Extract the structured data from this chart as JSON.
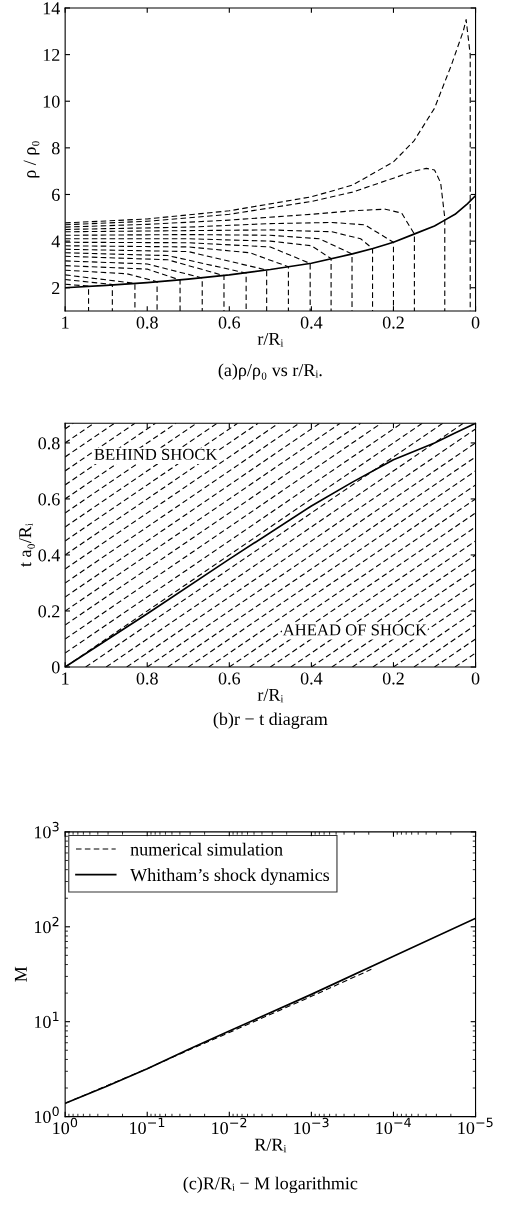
{
  "chart_data": [
    {
      "type": "line",
      "title": "(a)ρ/ρ₀ vs r/Rᵢ.",
      "xlabel": "r/Rᵢ",
      "ylabel": "ρ / ρ₀",
      "xlim": [
        1,
        0
      ],
      "ylim": [
        1,
        14
      ],
      "xticks": [
        1,
        0.8,
        0.6,
        0.4,
        0.2,
        0
      ],
      "yticks": [
        2,
        4,
        6,
        8,
        10,
        12,
        14
      ],
      "grid": false,
      "series": [
        {
          "color": "#000000",
          "line_style": "solid",
          "x": [
            1,
            0.9,
            0.8,
            0.7,
            0.6,
            0.5,
            0.4,
            0.3,
            0.25,
            0.2,
            0.15,
            0.1,
            0.075,
            0.05,
            0.02,
            0
          ],
          "values": [
            2.0,
            2.1,
            2.22,
            2.37,
            2.55,
            2.78,
            3.05,
            3.45,
            3.68,
            3.95,
            4.3,
            4.65,
            4.9,
            5.15,
            5.6,
            5.95
          ]
        },
        {
          "color": "#000000",
          "line_style": "dashed",
          "x": [
            1,
            0.943,
            0.943
          ],
          "values": [
            2.15,
            2.07,
            1
          ]
        },
        {
          "color": "#000000",
          "line_style": "dashed",
          "x": [
            1,
            0.885,
            0.885
          ],
          "values": [
            2.35,
            2.14,
            1
          ]
        },
        {
          "color": "#000000",
          "line_style": "dashed",
          "x": [
            1,
            0.83,
            0.83
          ],
          "values": [
            2.55,
            2.19,
            1
          ]
        },
        {
          "color": "#000000",
          "line_style": "dashed",
          "x": [
            1,
            0.85,
            0.776,
            0.776
          ],
          "values": [
            2.75,
            2.6,
            2.26,
            1
          ]
        },
        {
          "color": "#000000",
          "line_style": "dashed",
          "x": [
            1,
            0.8,
            0.72,
            0.72
          ],
          "values": [
            2.95,
            2.8,
            2.33,
            1
          ]
        },
        {
          "color": "#000000",
          "line_style": "dashed",
          "x": [
            1,
            0.8,
            0.666,
            0.666
          ],
          "values": [
            3.15,
            3.02,
            2.42,
            1
          ]
        },
        {
          "color": "#000000",
          "line_style": "dashed",
          "x": [
            1,
            0.75,
            0.613,
            0.613
          ],
          "values": [
            3.35,
            3.2,
            2.52,
            1
          ]
        },
        {
          "color": "#000000",
          "line_style": "dashed",
          "x": [
            1,
            0.75,
            0.559,
            0.559
          ],
          "values": [
            3.5,
            3.38,
            2.63,
            1
          ]
        },
        {
          "color": "#000000",
          "line_style": "dashed",
          "x": [
            1,
            0.7,
            0.509,
            0.509
          ],
          "values": [
            3.65,
            3.55,
            2.76,
            1
          ]
        },
        {
          "color": "#000000",
          "line_style": "dashed",
          "x": [
            1,
            0.7,
            0.55,
            0.456,
            0.456
          ],
          "values": [
            3.8,
            3.75,
            3.5,
            2.9,
            1
          ]
        },
        {
          "color": "#000000",
          "line_style": "dashed",
          "x": [
            1,
            0.7,
            0.5,
            0.403,
            0.403
          ],
          "values": [
            3.95,
            3.93,
            3.75,
            3.04,
            1
          ]
        },
        {
          "color": "#000000",
          "line_style": "dashed",
          "x": [
            1,
            0.7,
            0.5,
            0.4,
            0.352,
            0.352
          ],
          "values": [
            4.1,
            4.1,
            4.0,
            3.8,
            3.25,
            1
          ]
        },
        {
          "color": "#000000",
          "line_style": "dashed",
          "x": [
            1,
            0.7,
            0.5,
            0.38,
            0.301,
            0.301
          ],
          "values": [
            4.25,
            4.28,
            4.25,
            4.1,
            3.45,
            1
          ]
        },
        {
          "color": "#000000",
          "line_style": "dashed",
          "x": [
            1,
            0.7,
            0.5,
            0.35,
            0.28,
            0.251,
            0.251
          ],
          "values": [
            4.4,
            4.45,
            4.48,
            4.4,
            4.1,
            3.68,
            1
          ]
        },
        {
          "color": "#000000",
          "line_style": "dashed",
          "x": [
            1,
            0.7,
            0.5,
            0.35,
            0.27,
            0.2,
            0.2
          ],
          "values": [
            4.5,
            4.6,
            4.75,
            4.8,
            4.7,
            3.95,
            1
          ]
        },
        {
          "color": "#000000",
          "line_style": "dashed",
          "x": [
            1,
            0.8,
            0.6,
            0.4,
            0.3,
            0.22,
            0.18,
            0.149,
            0.149
          ],
          "values": [
            4.6,
            4.72,
            4.9,
            5.15,
            5.3,
            5.37,
            5.2,
            4.3,
            1
          ]
        },
        {
          "color": "#000000",
          "line_style": "dashed",
          "x": [
            1,
            0.8,
            0.6,
            0.4,
            0.3,
            0.2,
            0.15,
            0.12,
            0.1,
            0.085,
            0.075,
            0.075
          ],
          "values": [
            4.7,
            4.85,
            5.15,
            5.7,
            6.1,
            6.7,
            7.0,
            7.12,
            7.05,
            6.5,
            5.0,
            1
          ]
        },
        {
          "color": "#000000",
          "line_style": "dashed",
          "x": [
            1,
            0.8,
            0.6,
            0.4,
            0.3,
            0.2,
            0.15,
            0.1,
            0.06,
            0.03,
            0.023,
            0.013,
            0.013
          ],
          "values": [
            4.78,
            4.95,
            5.3,
            5.9,
            6.4,
            7.4,
            8.3,
            9.7,
            11.5,
            13.0,
            13.5,
            12.0,
            1
          ]
        }
      ]
    },
    {
      "type": "line",
      "title": "(b)r − t diagram",
      "xlabel": "r/Rᵢ",
      "ylabel": "t a₀/Rᵢ",
      "xlim": [
        1,
        0
      ],
      "ylim": [
        0,
        0.87
      ],
      "xticks": [
        1,
        0.8,
        0.6,
        0.4,
        0.2,
        0
      ],
      "yticks": [
        0,
        0.2,
        0.4,
        0.6,
        0.8
      ],
      "grid": false,
      "annotations": [
        "BEHIND SHOCK",
        "AHEAD OF SHOCK"
      ],
      "series": [
        {
          "color": "#000000",
          "line_style": "solid",
          "x": [
            1,
            0.8,
            0.6,
            0.4,
            0.3,
            0.2,
            0.1,
            0.05,
            0
          ],
          "values": [
            0,
            0.19,
            0.385,
            0.575,
            0.66,
            0.74,
            0.8,
            0.835,
            0.87
          ]
        },
        {
          "color": "#000000",
          "line_style": "dashed",
          "x": [
            1,
            0.98
          ],
          "values": [
            0.85,
            0.87
          ]
        },
        {
          "color": "#000000",
          "line_style": "dashed",
          "x": [
            1,
            0.93
          ],
          "values": [
            0.8,
            0.87
          ]
        },
        {
          "color": "#000000",
          "line_style": "dashed",
          "x": [
            1,
            0.88
          ],
          "values": [
            0.75,
            0.87
          ]
        },
        {
          "color": "#000000",
          "line_style": "dashed",
          "x": [
            1,
            0.83
          ],
          "values": [
            0.7,
            0.87
          ]
        },
        {
          "color": "#000000",
          "line_style": "dashed",
          "x": [
            1,
            0.78
          ],
          "values": [
            0.65,
            0.87
          ]
        },
        {
          "color": "#000000",
          "line_style": "dashed",
          "x": [
            1,
            0.73
          ],
          "values": [
            0.6,
            0.87
          ]
        },
        {
          "color": "#000000",
          "line_style": "dashed",
          "x": [
            1,
            0.68
          ],
          "values": [
            0.55,
            0.87
          ]
        },
        {
          "color": "#000000",
          "line_style": "dashed",
          "x": [
            1,
            0.63
          ],
          "values": [
            0.5,
            0.87
          ]
        },
        {
          "color": "#000000",
          "line_style": "dashed",
          "x": [
            1,
            0.58
          ],
          "values": [
            0.45,
            0.87
          ]
        },
        {
          "color": "#000000",
          "line_style": "dashed",
          "x": [
            1,
            0.53
          ],
          "values": [
            0.4,
            0.87
          ]
        },
        {
          "color": "#000000",
          "line_style": "dashed",
          "x": [
            1,
            0.48
          ],
          "values": [
            0.35,
            0.87
          ]
        },
        {
          "color": "#000000",
          "line_style": "dashed",
          "x": [
            1,
            0.43
          ],
          "values": [
            0.3,
            0.87
          ]
        },
        {
          "color": "#000000",
          "line_style": "dashed",
          "x": [
            1,
            0.38
          ],
          "values": [
            0.25,
            0.87
          ]
        },
        {
          "color": "#000000",
          "line_style": "dashed",
          "x": [
            1,
            0.33
          ],
          "values": [
            0.2,
            0.87
          ]
        },
        {
          "color": "#000000",
          "line_style": "dashed",
          "x": [
            1,
            0.28
          ],
          "values": [
            0.15,
            0.87
          ]
        },
        {
          "color": "#000000",
          "line_style": "dashed",
          "x": [
            1,
            0.23
          ],
          "values": [
            0.1,
            0.87
          ]
        },
        {
          "color": "#000000",
          "line_style": "dashed",
          "x": [
            1,
            0.18
          ],
          "values": [
            0.05,
            0.87
          ]
        },
        {
          "color": "#000000",
          "line_style": "dashed",
          "x": [
            1,
            0.13
          ],
          "values": [
            0,
            0.87
          ]
        },
        {
          "color": "#000000",
          "line_style": "dashed",
          "x": [
            0.95,
            0.08
          ],
          "values": [
            0,
            0.87
          ]
        },
        {
          "color": "#000000",
          "line_style": "dashed",
          "x": [
            0.9,
            0.03
          ],
          "values": [
            0,
            0.87
          ]
        },
        {
          "color": "#000000",
          "line_style": "dashed",
          "x": [
            0.85,
            0
          ],
          "values": [
            0,
            0.85
          ]
        },
        {
          "color": "#000000",
          "line_style": "dashed",
          "x": [
            0.8,
            0
          ],
          "values": [
            0,
            0.8
          ]
        },
        {
          "color": "#000000",
          "line_style": "dashed",
          "x": [
            0.75,
            0
          ],
          "values": [
            0,
            0.75
          ]
        },
        {
          "color": "#000000",
          "line_style": "dashed",
          "x": [
            0.7,
            0
          ],
          "values": [
            0,
            0.7
          ]
        },
        {
          "color": "#000000",
          "line_style": "dashed",
          "x": [
            0.65,
            0
          ],
          "values": [
            0,
            0.65
          ]
        },
        {
          "color": "#000000",
          "line_style": "dashed",
          "x": [
            0.6,
            0
          ],
          "values": [
            0,
            0.6
          ]
        },
        {
          "color": "#000000",
          "line_style": "dashed",
          "x": [
            0.55,
            0
          ],
          "values": [
            0,
            0.55
          ]
        },
        {
          "color": "#000000",
          "line_style": "dashed",
          "x": [
            0.5,
            0
          ],
          "values": [
            0,
            0.5
          ]
        },
        {
          "color": "#000000",
          "line_style": "dashed",
          "x": [
            0.45,
            0
          ],
          "values": [
            0,
            0.45
          ]
        },
        {
          "color": "#000000",
          "line_style": "dashed",
          "x": [
            0.4,
            0
          ],
          "values": [
            0,
            0.4
          ]
        },
        {
          "color": "#000000",
          "line_style": "dashed",
          "x": [
            0.35,
            0
          ],
          "values": [
            0,
            0.35
          ]
        },
        {
          "color": "#000000",
          "line_style": "dashed",
          "x": [
            0.3,
            0
          ],
          "values": [
            0,
            0.3
          ]
        },
        {
          "color": "#000000",
          "line_style": "dashed",
          "x": [
            0.25,
            0
          ],
          "values": [
            0,
            0.25
          ]
        },
        {
          "color": "#000000",
          "line_style": "dashed",
          "x": [
            0.2,
            0
          ],
          "values": [
            0,
            0.2
          ]
        },
        {
          "color": "#000000",
          "line_style": "dashed",
          "x": [
            0.15,
            0
          ],
          "values": [
            0,
            0.15
          ]
        },
        {
          "color": "#000000",
          "line_style": "dashed",
          "x": [
            0.1,
            0
          ],
          "values": [
            0,
            0.1
          ]
        },
        {
          "color": "#000000",
          "line_style": "dashed",
          "x": [
            0.05,
            0
          ],
          "values": [
            0,
            0.05
          ]
        }
      ]
    },
    {
      "type": "line",
      "title": "(c)R/Rᵢ − M logarithmic",
      "xlabel": "R/Rᵢ",
      "ylabel": "M",
      "log": "xy",
      "xlim": [
        1,
        1e-05
      ],
      "ylim": [
        1,
        1000
      ],
      "xticks": [
        {
          "value": 1,
          "label": "10$^{0}$"
        },
        {
          "value": 0.1,
          "label": "10$^{−1}$"
        },
        {
          "value": 0.01,
          "label": "10$^{−2}$"
        },
        {
          "value": 0.001,
          "label": "10$^{−3}$"
        },
        {
          "value": 0.0001,
          "label": "10$^{−4}$"
        },
        {
          "value": 1e-05,
          "label": "10$^{−5}$"
        }
      ],
      "yticks": [
        {
          "value": 1,
          "label": "10$^{0}$"
        },
        {
          "value": 10,
          "label": "10$^{1}$"
        },
        {
          "value": 100,
          "label": "10$^{2}$"
        },
        {
          "value": 1000,
          "label": "10$^{3}$"
        }
      ],
      "grid": false,
      "legend": "top left",
      "series": [
        {
          "name": "numerical simulation",
          "color": "#000000",
          "line_style": "dashed",
          "x": [
            1,
            0.316,
            0.1,
            0.0316,
            0.01,
            0.001,
            0.000186
          ],
          "values": [
            1.38,
            2.1,
            3.2,
            5.0,
            7.7,
            18.5,
            35.6
          ]
        },
        {
          "name": "Whitham’s shock dynamics",
          "color": "#000000",
          "line_style": "solid",
          "x": [
            1,
            0.316,
            0.1,
            0.0316,
            0.01,
            0.001,
            0.0001,
            1e-05
          ],
          "values": [
            1.38,
            2.07,
            3.19,
            5.1,
            7.98,
            19.4,
            49,
            123
          ]
        }
      ]
    }
  ]
}
